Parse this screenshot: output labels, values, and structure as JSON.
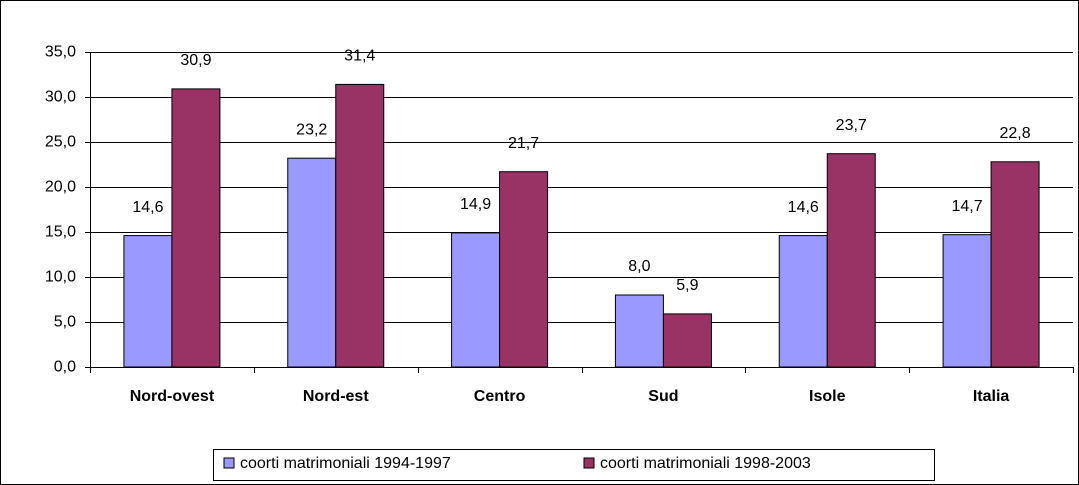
{
  "chart_data": {
    "type": "bar",
    "categories": [
      "Nord-ovest",
      "Nord-est",
      "Centro",
      "Sud",
      "Isole",
      "Italia"
    ],
    "series": [
      {
        "name": "coorti matrimoniali 1994-1997",
        "color": "#9999ff",
        "values": [
          14.6,
          23.2,
          14.9,
          8.0,
          14.6,
          14.7
        ],
        "value_labels": [
          "14,6",
          "23,2",
          "14,9",
          "8,0",
          "14,6",
          "14,7"
        ]
      },
      {
        "name": "coorti matrimoniali 1998-2003",
        "color": "#993366",
        "values": [
          30.9,
          31.4,
          21.7,
          5.9,
          23.7,
          22.8
        ],
        "value_labels": [
          "30,9",
          "31,4",
          "21,7",
          "5,9",
          "23,7",
          "22,8"
        ]
      }
    ],
    "ylim": [
      0,
      35
    ],
    "yticks": [
      {
        "value": 0,
        "label": "0,0"
      },
      {
        "value": 5,
        "label": "5,0"
      },
      {
        "value": 10,
        "label": "10,0"
      },
      {
        "value": 15,
        "label": "15,0"
      },
      {
        "value": 20,
        "label": "20,0"
      },
      {
        "value": 25,
        "label": "25,0"
      },
      {
        "value": 30,
        "label": "30,0"
      },
      {
        "value": 35,
        "label": "35,0"
      }
    ],
    "grid": true,
    "legend": "bottom"
  }
}
